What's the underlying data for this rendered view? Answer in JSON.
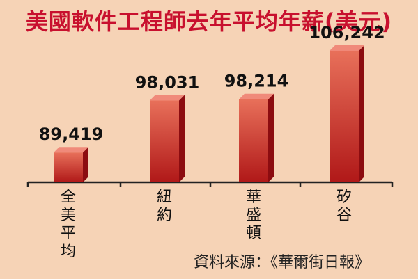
{
  "chart_data": {
    "type": "bar",
    "title": "美國軟件工程師去年平均年薪(美元)",
    "categories": [
      "全美平均",
      "紐約",
      "華盛頓",
      "矽谷"
    ],
    "values": [
      89419,
      98031,
      98214,
      106242
    ],
    "value_labels": [
      "89,419",
      "98,031",
      "98,214",
      "106,242"
    ],
    "ylim": [
      84500,
      107500
    ],
    "grid": false,
    "legend": "none",
    "colors": {
      "bar_top": "#e8705a",
      "bar_bottom": "#b01818",
      "bar_side": "#8c0c10",
      "bar_cap": "#f08a7a",
      "title": "#c8102e",
      "background": "#f6d3b6"
    }
  },
  "source": "資料來源：《華爾街日報》"
}
